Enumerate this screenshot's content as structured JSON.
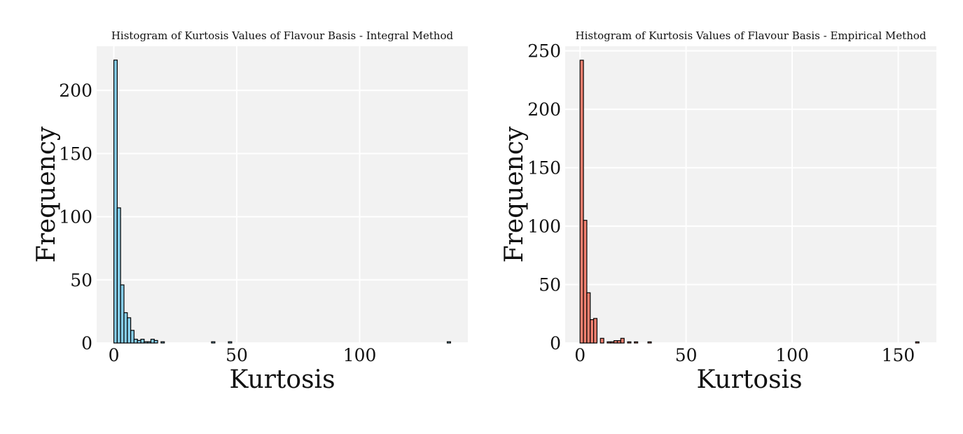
{
  "chart_data": [
    {
      "type": "bar",
      "title": "Histogram of Kurtosis Values of Flavour Basis - Integral Method",
      "xlabel": "Kurtosis",
      "ylabel": "Frequency",
      "xlim": [
        -7,
        144
      ],
      "ylim": [
        0,
        235
      ],
      "xticks": [
        0,
        50,
        100
      ],
      "yticks": [
        0,
        50,
        100,
        150,
        200
      ],
      "grid": true,
      "bar_color": "#87CEEB",
      "bin_width": 1.37,
      "bins": [
        {
          "x": 0.0,
          "count": 224
        },
        {
          "x": 1.37,
          "count": 107
        },
        {
          "x": 2.74,
          "count": 46
        },
        {
          "x": 4.11,
          "count": 24
        },
        {
          "x": 5.48,
          "count": 20
        },
        {
          "x": 6.85,
          "count": 10
        },
        {
          "x": 8.22,
          "count": 3
        },
        {
          "x": 9.59,
          "count": 2
        },
        {
          "x": 10.96,
          "count": 3
        },
        {
          "x": 12.33,
          "count": 1
        },
        {
          "x": 13.7,
          "count": 1
        },
        {
          "x": 15.07,
          "count": 3
        },
        {
          "x": 16.44,
          "count": 2
        },
        {
          "x": 17.81,
          "count": 0
        },
        {
          "x": 19.18,
          "count": 1
        },
        {
          "x": 39.73,
          "count": 1
        },
        {
          "x": 46.58,
          "count": 1
        },
        {
          "x": 135.6,
          "count": 1
        }
      ]
    },
    {
      "type": "bar",
      "title": "Histogram of Kurtosis Values of Flavour Basis - Empirical Method",
      "xlabel": "Kurtosis",
      "ylabel": "Frequency",
      "xlim": [
        -7,
        168
      ],
      "ylim": [
        0,
        254
      ],
      "xticks": [
        0,
        50,
        100,
        150
      ],
      "yticks": [
        0,
        50,
        100,
        150,
        200,
        250
      ],
      "grid": true,
      "bar_color": "#F08070",
      "bin_width": 1.6,
      "bins": [
        {
          "x": 0.0,
          "count": 242
        },
        {
          "x": 1.6,
          "count": 105
        },
        {
          "x": 3.2,
          "count": 43
        },
        {
          "x": 4.8,
          "count": 20
        },
        {
          "x": 6.4,
          "count": 21
        },
        {
          "x": 8.0,
          "count": 0
        },
        {
          "x": 9.6,
          "count": 4
        },
        {
          "x": 11.2,
          "count": 0
        },
        {
          "x": 12.8,
          "count": 1
        },
        {
          "x": 14.4,
          "count": 1
        },
        {
          "x": 16.0,
          "count": 2
        },
        {
          "x": 17.6,
          "count": 2
        },
        {
          "x": 19.2,
          "count": 4
        },
        {
          "x": 20.8,
          "count": 0
        },
        {
          "x": 22.4,
          "count": 1
        },
        {
          "x": 25.6,
          "count": 1
        },
        {
          "x": 32.0,
          "count": 1
        },
        {
          "x": 158.2,
          "count": 1
        }
      ]
    }
  ]
}
